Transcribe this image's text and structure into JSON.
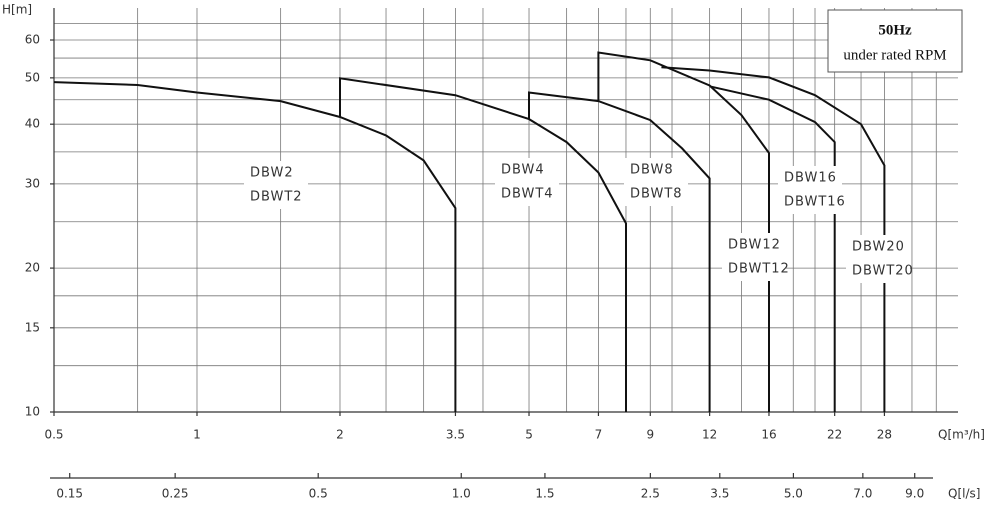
{
  "chart_data": {
    "type": "line",
    "log_x": true,
    "log_y": true,
    "y_label": "H[m]",
    "x_label": "Q[m³/h]",
    "x2_label": "Q[l/s]",
    "xlim": [
      0.5,
      40
    ],
    "ylim": [
      10,
      70
    ],
    "xticks": [
      0.5,
      1,
      2,
      3.5,
      5,
      7,
      9,
      12,
      16,
      22,
      28
    ],
    "yticks": [
      10,
      15,
      20,
      30,
      40,
      50,
      60
    ],
    "xgrid": [
      0.75,
      1,
      1.5,
      2,
      2.5,
      3,
      3.5,
      4,
      5,
      6,
      7,
      8,
      9,
      10,
      12,
      14,
      16,
      18,
      20,
      22,
      25,
      28,
      32,
      36
    ],
    "ygrid": [
      12.5,
      15,
      17.5,
      20,
      25,
      30,
      35,
      40,
      45,
      50,
      55,
      60,
      65
    ],
    "x2lim": [
      0.139,
      11.1
    ],
    "x2ticks": [
      0.15,
      0.25,
      0.5,
      {
        "value": 1,
        "label": "1.0"
      },
      1.5,
      2.5,
      3.5,
      {
        "value": 5,
        "label": "5.0"
      },
      {
        "value": 7,
        "label": "7.0"
      },
      {
        "value": 9,
        "label": "9.0"
      }
    ],
    "annotation": [
      "50Hz",
      "under rated RPM"
    ],
    "color": "#111111",
    "series": [
      {
        "name": "DBW2",
        "alt_name": "DBWT2",
        "x": [
          0.5,
          0.75,
          1,
          1.5,
          2,
          2.5,
          3,
          3.5,
          3.5
        ],
        "y": [
          49,
          48.3,
          46.6,
          44.7,
          41.4,
          37.9,
          33.6,
          26.7,
          10
        ]
      },
      {
        "name": "DBW4",
        "alt_name": "DBWT4",
        "x": [
          2,
          2,
          3.5,
          5,
          6,
          7,
          8,
          8
        ],
        "y": [
          41.4,
          49.9,
          46,
          41,
          36.7,
          31.7,
          24.8,
          10
        ]
      },
      {
        "name": "DBW8",
        "alt_name": "DBWT8",
        "x": [
          5,
          5,
          7,
          9,
          10.5,
          12,
          12
        ],
        "y": [
          41,
          46.6,
          44.7,
          40.8,
          35.6,
          30.8,
          10
        ]
      },
      {
        "name": "DBW12",
        "alt_name": "DBWT12",
        "x": [
          7,
          7,
          9,
          12,
          14,
          16,
          16
        ],
        "y": [
          44.7,
          56.5,
          54.4,
          48.2,
          41.8,
          34.8,
          10
        ]
      },
      {
        "name": "DBW16",
        "alt_name": "DBWT16",
        "x": [
          12,
          16,
          20,
          22,
          22
        ],
        "y": [
          48,
          45,
          40.4,
          36.7,
          10
        ]
      },
      {
        "name": "DBW20",
        "alt_name": "DBWT20",
        "x": [
          9.5,
          12,
          16,
          20,
          25,
          28,
          28
        ],
        "y": [
          52.6,
          51.8,
          50.1,
          46,
          40,
          32.8,
          10
        ]
      }
    ]
  }
}
